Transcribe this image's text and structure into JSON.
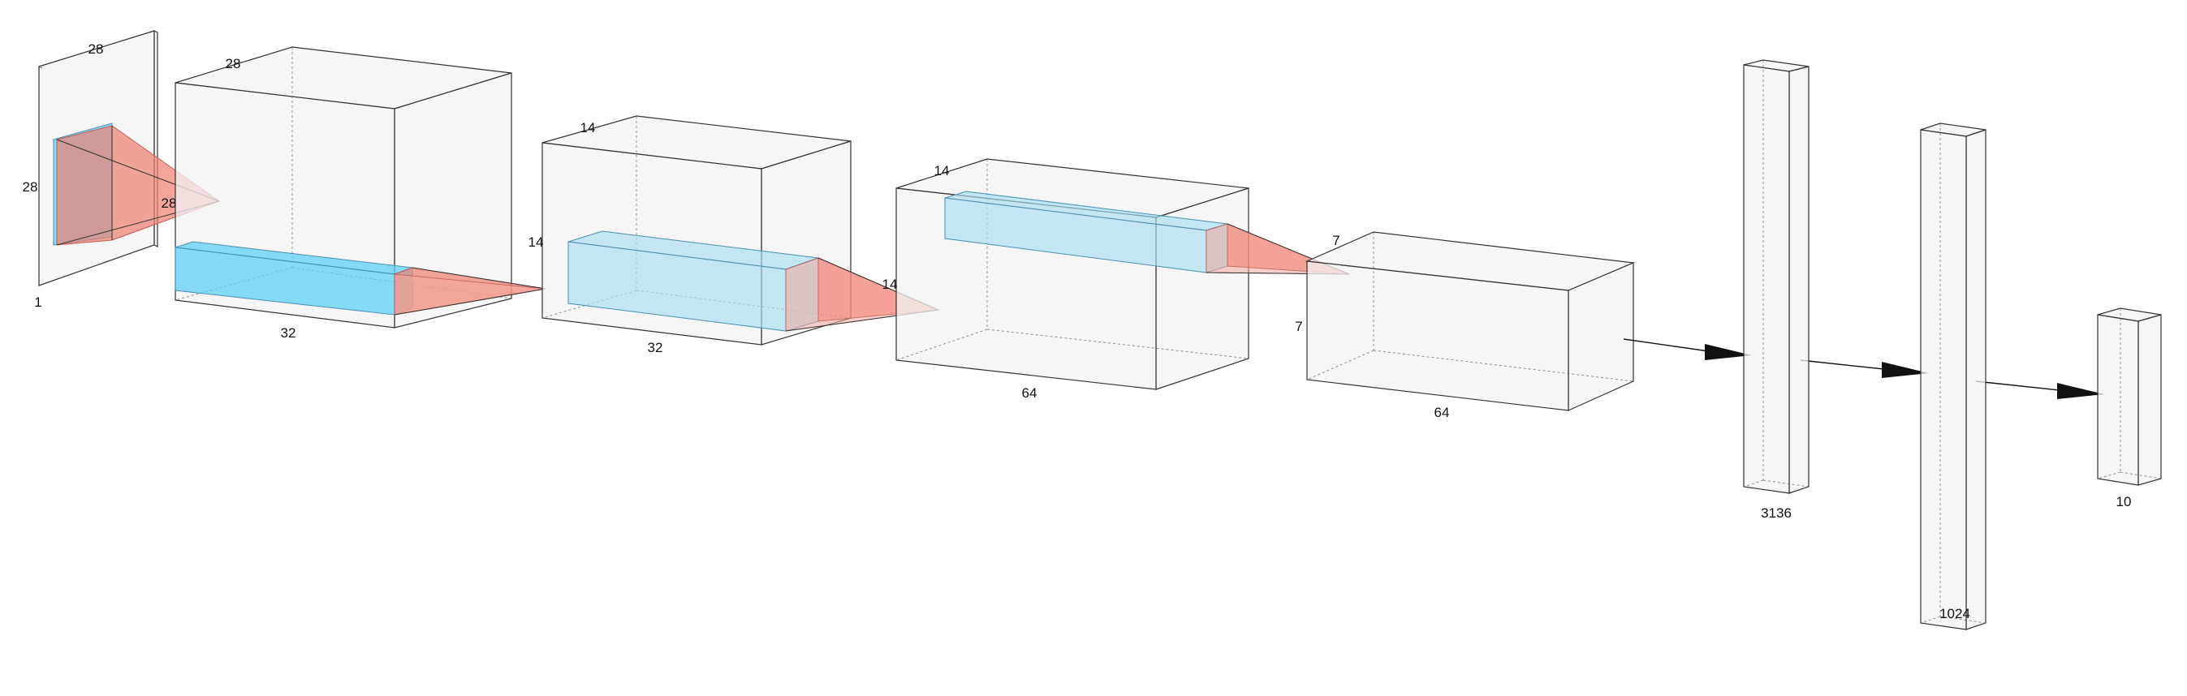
{
  "diagram": {
    "input_layer": {
      "width_label": "28",
      "height_label": "28",
      "depth_label": "1",
      "kernel_label": "28"
    },
    "conv1": {
      "height_label": "28",
      "depth_label": "32"
    },
    "pool1": {
      "height_label": "14",
      "depth_label": "32",
      "side_label": "14"
    },
    "conv2": {
      "height_label": "14",
      "depth_label": "64",
      "side_label": "14"
    },
    "pool2": {
      "height_label": "7",
      "depth_label": "64",
      "side_label": "7"
    },
    "dense1": {
      "label": "3136"
    },
    "dense2": {
      "label": "1024"
    },
    "output": {
      "label": "10"
    }
  }
}
